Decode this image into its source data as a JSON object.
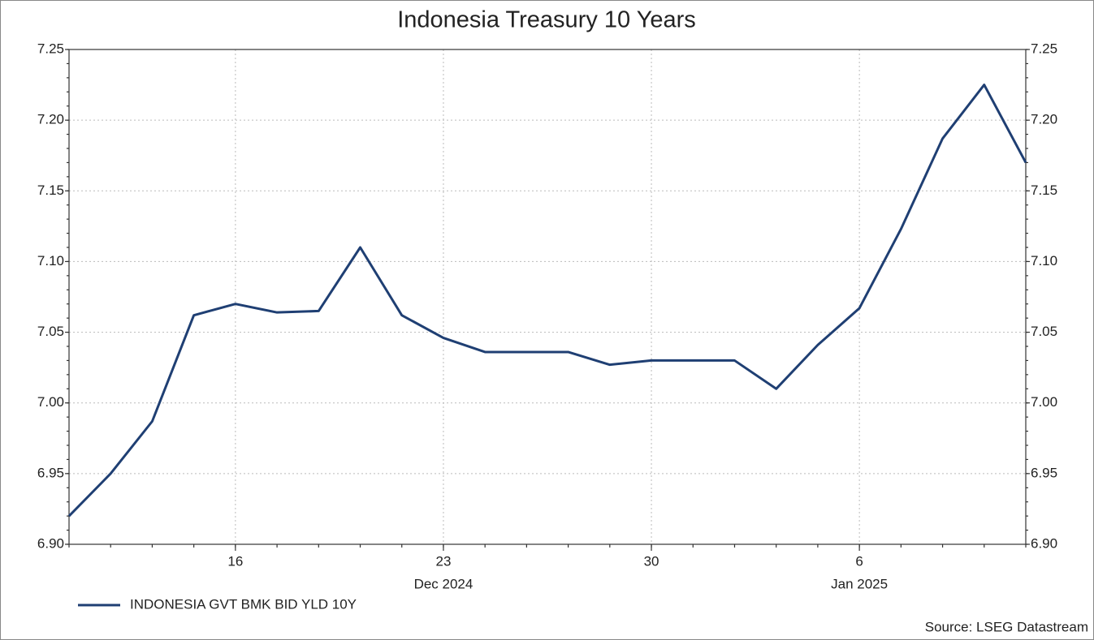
{
  "chart_data": {
    "type": "line",
    "title": "Indonesia Treasury 10 Years",
    "x": [
      "2024-12-10",
      "2024-12-11",
      "2024-12-12",
      "2024-12-13",
      "2024-12-16",
      "2024-12-17",
      "2024-12-18",
      "2024-12-19",
      "2024-12-20",
      "2024-12-23",
      "2024-12-24",
      "2024-12-25",
      "2024-12-26",
      "2024-12-27",
      "2024-12-30",
      "2024-12-31",
      "2025-01-01",
      "2025-01-02",
      "2025-01-03",
      "2025-01-06",
      "2025-01-07",
      "2025-01-08",
      "2025-01-09",
      "2025-01-10"
    ],
    "series": [
      {
        "name": "INDONESIA GVT BMK BID YLD 10Y",
        "color": "#1f3f73",
        "values": [
          6.92,
          6.95,
          6.987,
          7.062,
          7.07,
          7.064,
          7.065,
          7.11,
          7.062,
          7.046,
          7.036,
          7.036,
          7.036,
          7.027,
          7.03,
          7.03,
          7.03,
          7.01,
          7.041,
          7.067,
          7.123,
          7.187,
          7.225,
          7.17
        ]
      }
    ],
    "xticks": [
      {
        "value": "2024-12-16",
        "label": "16"
      },
      {
        "value": "2024-12-23",
        "label": "23"
      },
      {
        "value": "2024-12-30",
        "label": "30"
      },
      {
        "value": "2025-01-06",
        "label": "6"
      }
    ],
    "xgroups": [
      {
        "value": "2024-12-23",
        "label": "Dec 2024"
      },
      {
        "value": "2025-01-06",
        "label": "Jan 2025"
      }
    ],
    "ylim": [
      6.9,
      7.25
    ],
    "yticks": [
      {
        "value": 6.9,
        "label": "6.90"
      },
      6.95,
      {
        "value": 7.0,
        "label": "7.00"
      },
      7.05,
      {
        "value": 7.1,
        "label": "7.10"
      },
      7.15,
      {
        "value": 7.2,
        "label": "7.20"
      },
      7.25
    ],
    "grid": true,
    "source": "Source: LSEG Datastream"
  }
}
